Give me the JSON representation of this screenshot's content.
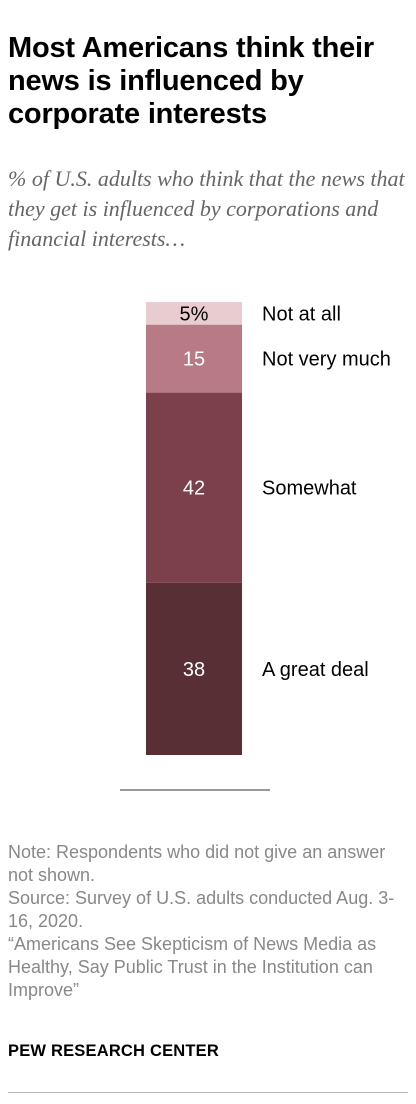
{
  "title": "Most Americans think their news is influenced by corporate interests",
  "subtitle": "% of U.S. adults who think that the news that they get is influenced by corporations and financial interests…",
  "chart_data": {
    "type": "bar",
    "stacked": true,
    "orientation": "vertical",
    "categories": [
      "A great deal",
      "Somewhat",
      "Not very much",
      "Not at all"
    ],
    "values": [
      38,
      42,
      15,
      5
    ],
    "value_labels": [
      "38",
      "42",
      "15",
      "5%"
    ],
    "colors": [
      "#582f35",
      "#7b404a",
      "#b87a84",
      "#e8ccd0"
    ],
    "label_colors": [
      "#ffffff",
      "#ffffff",
      "#ffffff",
      "#000000"
    ],
    "ylim": [
      0,
      100
    ]
  },
  "footer": {
    "note": "Note: Respondents who did not give an answer not shown.",
    "source": "Source: Survey of U.S. adults conducted Aug. 3-16, 2020.",
    "report": "“Americans See Skepticism of News Media as Healthy, Say Public Trust in the Institution can Improve”"
  },
  "brand": "PEW RESEARCH CENTER"
}
